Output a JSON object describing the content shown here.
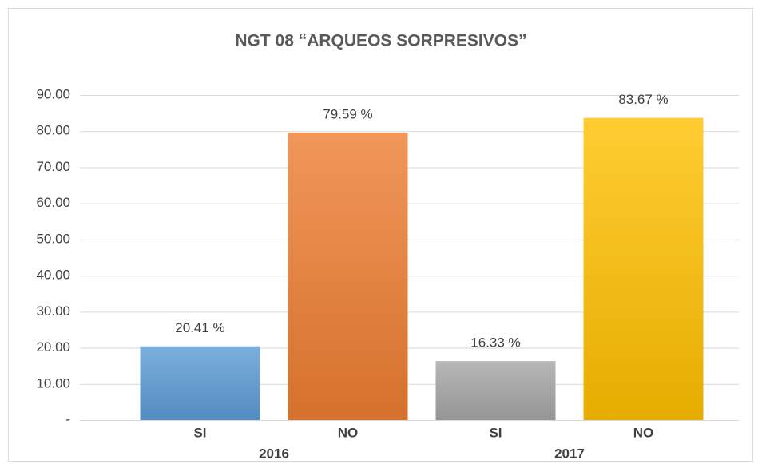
{
  "chart_data": {
    "type": "bar",
    "title": "NGT 08 “ARQUEOS SORPRESIVOS”",
    "categories": [
      "SI",
      "NO",
      "SI",
      "NO"
    ],
    "groups": [
      {
        "label": "2016",
        "categories": [
          0,
          1
        ]
      },
      {
        "label": "2017",
        "categories": [
          2,
          3
        ]
      }
    ],
    "values": [
      20.41,
      79.59,
      16.33,
      83.67
    ],
    "value_labels": [
      "20.41 %",
      "79.59 %",
      "16.33 %",
      "83.67 %"
    ],
    "colors": [
      "#5b9bd5",
      "#ed7d31",
      "#a5a5a5",
      "#ffc000"
    ],
    "ylim": [
      0,
      90
    ],
    "yticks": [
      {
        "value": 0,
        "label": "-"
      },
      {
        "value": 10,
        "label": "10.00"
      },
      {
        "value": 20,
        "label": "20.00"
      },
      {
        "value": 30,
        "label": "30.00"
      },
      {
        "value": 40,
        "label": "40.00"
      },
      {
        "value": 50,
        "label": "50.00"
      },
      {
        "value": 60,
        "label": "60.00"
      },
      {
        "value": 70,
        "label": "70.00"
      },
      {
        "value": 80,
        "label": "80.00"
      },
      {
        "value": 90,
        "label": "90.00"
      }
    ],
    "grid": true
  }
}
